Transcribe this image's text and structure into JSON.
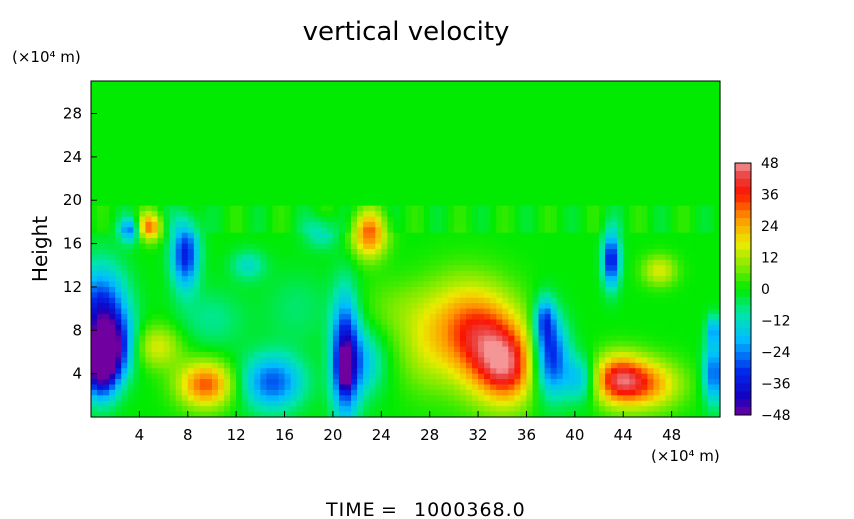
{
  "chart_data": {
    "type": "heatmap",
    "title": "vertical velocity",
    "ylabel": "Height",
    "x_unit": "(×10⁴ m)",
    "y_unit": "(×10⁴ m)",
    "xlim": [
      0,
      52
    ],
    "ylim": [
      0,
      31
    ],
    "x_ticks": [
      4,
      8,
      12,
      16,
      20,
      24,
      28,
      32,
      36,
      40,
      44,
      48
    ],
    "x_tick_labels": [
      "4",
      "8",
      "12",
      "16",
      "20",
      "24",
      "28",
      "32",
      "36",
      "40",
      "44",
      "48"
    ],
    "y_ticks": [
      4,
      8,
      12,
      16,
      20,
      24,
      28
    ],
    "y_tick_labels": [
      "4",
      "8",
      "12",
      "16",
      "20",
      "24",
      "28"
    ],
    "colorbar": {
      "min": -48,
      "max": 48,
      "ticks": [
        48,
        36,
        24,
        12,
        0,
        -12,
        -24,
        -36,
        -48
      ],
      "tick_labels": [
        "48",
        "36",
        "24",
        "12",
        "0",
        "−12",
        "−24",
        "−36",
        "−48"
      ]
    },
    "features": [
      {
        "x": 0.8,
        "y": 9.5,
        "sx": 1.5,
        "sy": 3.0,
        "v": -36
      },
      {
        "x": 0.8,
        "y": 4.5,
        "sx": 1.0,
        "sy": 2.0,
        "v": -44
      },
      {
        "x": 1.8,
        "y": 6.5,
        "sx": 1.2,
        "sy": 2.0,
        "v": -28
      },
      {
        "x": 3.2,
        "y": 17.2,
        "sx": 0.6,
        "sy": 0.8,
        "v": -24
      },
      {
        "x": 4.8,
        "y": 17.5,
        "sx": 0.7,
        "sy": 0.9,
        "v": 28
      },
      {
        "x": 5.5,
        "y": 6.5,
        "sx": 1.4,
        "sy": 1.4,
        "v": 16
      },
      {
        "x": 7.8,
        "y": 15.0,
        "sx": 0.8,
        "sy": 2.2,
        "v": -34
      },
      {
        "x": 9.5,
        "y": 3.0,
        "sx": 1.6,
        "sy": 1.5,
        "v": 32
      },
      {
        "x": 15.0,
        "y": 3.2,
        "sx": 1.8,
        "sy": 1.8,
        "v": -28
      },
      {
        "x": 13.0,
        "y": 14.0,
        "sx": 1.0,
        "sy": 1.0,
        "v": -12
      },
      {
        "x": 19.0,
        "y": 17.0,
        "sx": 1.0,
        "sy": 1.0,
        "v": -12
      },
      {
        "x": 21.0,
        "y": 5.5,
        "sx": 0.8,
        "sy": 4.0,
        "v": -40
      },
      {
        "x": 21.0,
        "y": 4.5,
        "sx": 0.3,
        "sy": 1.0,
        "v": -46
      },
      {
        "x": 22.5,
        "y": 5.0,
        "sx": 1.2,
        "sy": 2.2,
        "v": -16
      },
      {
        "x": 23.0,
        "y": 16.8,
        "sx": 1.0,
        "sy": 1.5,
        "v": 30
      },
      {
        "x": 27.5,
        "y": 6.5,
        "sx": 1.6,
        "sy": 3.0,
        "v": 10
      },
      {
        "x": 32.5,
        "y": 7.0,
        "sx": 2.2,
        "sy": 3.2,
        "v": 34
      },
      {
        "x": 34.5,
        "y": 4.5,
        "sx": 1.6,
        "sy": 2.4,
        "v": 30
      },
      {
        "x": 30.0,
        "y": 9.0,
        "sx": 2.0,
        "sy": 3.0,
        "v": 12
      },
      {
        "x": 38.0,
        "y": 5.5,
        "sx": 1.0,
        "sy": 2.5,
        "v": -34
      },
      {
        "x": 37.5,
        "y": 9.0,
        "sx": 0.6,
        "sy": 1.5,
        "v": -24
      },
      {
        "x": 40.5,
        "y": 3.5,
        "sx": 1.0,
        "sy": 1.5,
        "v": -20
      },
      {
        "x": 43.5,
        "y": 3.5,
        "sx": 1.6,
        "sy": 1.6,
        "v": 34
      },
      {
        "x": 46.0,
        "y": 3.0,
        "sx": 2.0,
        "sy": 1.6,
        "v": 24
      },
      {
        "x": 43.0,
        "y": 14.5,
        "sx": 0.5,
        "sy": 1.8,
        "v": -36
      },
      {
        "x": 47.0,
        "y": 13.5,
        "sx": 1.0,
        "sy": 1.0,
        "v": 16
      },
      {
        "x": 51.5,
        "y": 4.0,
        "sx": 0.6,
        "sy": 2.0,
        "v": -28
      },
      {
        "x": 51.5,
        "y": 8.0,
        "sx": 0.4,
        "sy": 1.0,
        "v": -20
      },
      {
        "x": 25.0,
        "y": 10.0,
        "sx": 2.0,
        "sy": 2.0,
        "v": 6
      },
      {
        "x": 10.0,
        "y": 9.0,
        "sx": 2.0,
        "sy": 2.0,
        "v": -8
      },
      {
        "x": 17.0,
        "y": 10.0,
        "sx": 2.0,
        "sy": 2.5,
        "v": -6
      }
    ]
  },
  "footer": {
    "time_label": "TIME",
    "time_equals": "=",
    "time_value": "1000368.0"
  }
}
